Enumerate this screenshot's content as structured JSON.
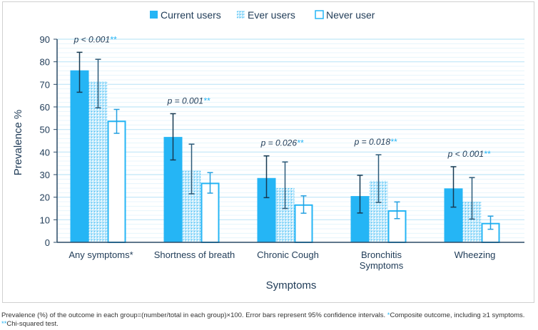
{
  "chart_data": {
    "type": "bar",
    "xlabel": "Symptoms",
    "ylabel": "Prevalence %",
    "ylim": [
      0,
      90
    ],
    "yticks": [
      0,
      10,
      20,
      30,
      40,
      50,
      60,
      70,
      80,
      90
    ],
    "grid": true,
    "legend_position": "top",
    "categories": [
      "Any symptoms*",
      "Shortness of breath",
      "Chronic Cough",
      "Bronchitis Symptoms",
      "Wheezing"
    ],
    "p_values": [
      "p < 0.001",
      "p = 0.001",
      "p = 0.026",
      "p = 0.018",
      "p < 0.001"
    ],
    "p_suffix": "**",
    "series": [
      {
        "name": "Current users",
        "style": "solid",
        "color": "#25b5f5",
        "values": [
          76.2,
          46.7,
          28.5,
          20.5,
          23.9
        ],
        "ci_low": [
          66.5,
          36.5,
          19.8,
          13.0,
          15.6
        ],
        "ci_high": [
          84.2,
          57.0,
          38.3,
          29.7,
          33.5
        ]
      },
      {
        "name": "Ever users",
        "style": "pattern",
        "color": "#25b5f5",
        "values": [
          71.3,
          31.8,
          24.1,
          27.3,
          18.1
        ],
        "ci_low": [
          59.6,
          21.5,
          15.0,
          17.7,
          10.3
        ],
        "ci_high": [
          81.1,
          43.5,
          35.6,
          38.8,
          28.7
        ]
      },
      {
        "name": "Never user",
        "style": "outline",
        "color": "#25b5f5",
        "values": [
          53.6,
          26.1,
          16.5,
          13.9,
          8.3
        ],
        "ci_low": [
          48.3,
          21.8,
          12.9,
          10.5,
          5.8
        ],
        "ci_high": [
          58.9,
          30.9,
          20.6,
          17.9,
          11.6
        ]
      }
    ]
  },
  "footnote": {
    "main": "Prevalence (%) of the outcome in each group=(number/total in each group)×100. Error bars represent 95% confidence intervals. ",
    "star1": "*",
    "composite": "Composite outcome, including ≥1 symptoms.",
    "star2": "**",
    "chi": "Chi-squared test."
  }
}
